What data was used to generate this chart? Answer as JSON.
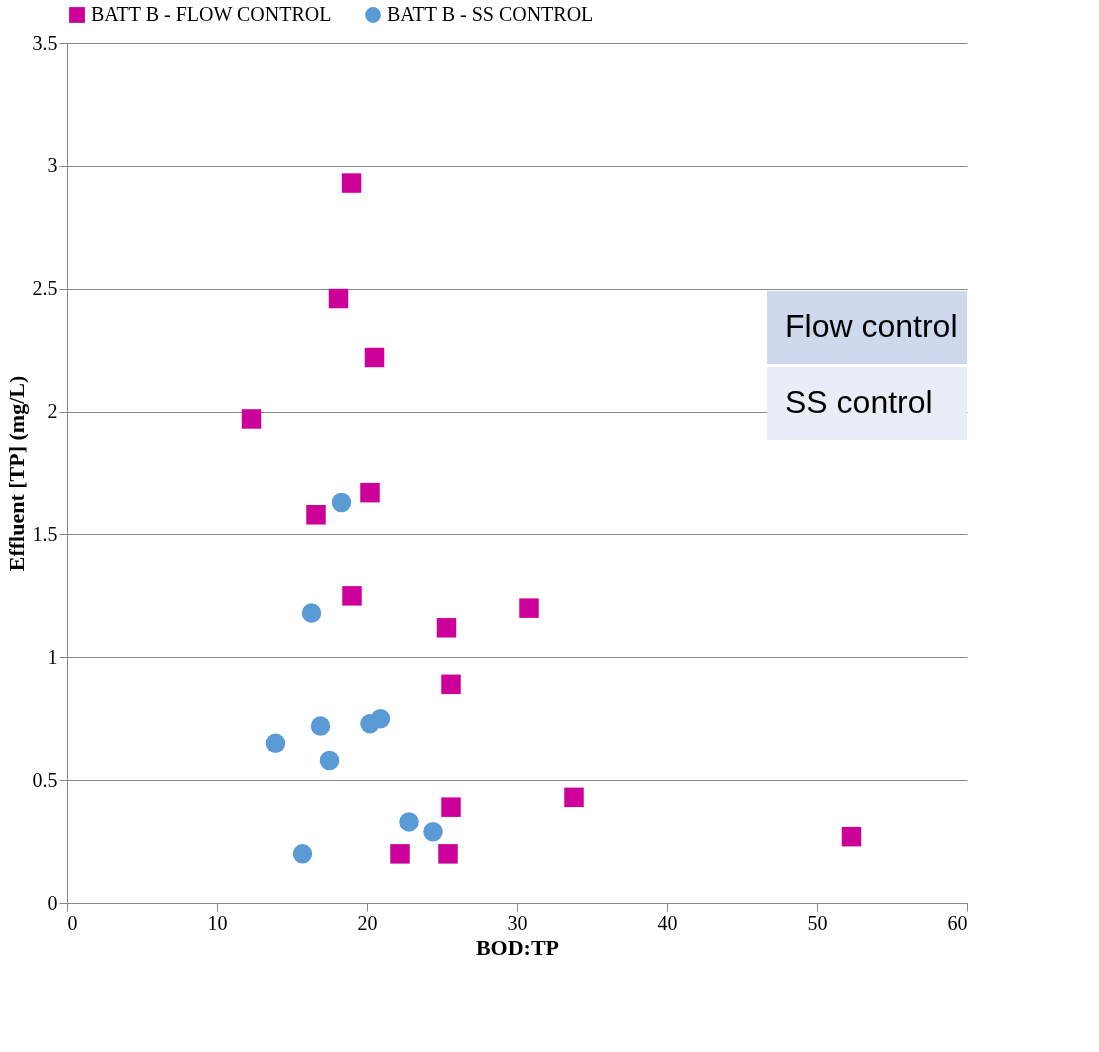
{
  "chart_data": {
    "type": "scatter",
    "xlabel": "BOD:TP",
    "ylabel": "Effluent [TP] (mg/L)",
    "xlim": [
      0,
      60
    ],
    "xticks": [
      0,
      10,
      20,
      30,
      40,
      50,
      60
    ],
    "ylim": [
      0,
      3.5
    ],
    "yticks": [
      0,
      0.5,
      1,
      1.5,
      2,
      2.5,
      3,
      3.5
    ],
    "grid": "y",
    "legend": "top",
    "series": [
      {
        "name": "BATT B - FLOW CONTROL",
        "color": "#cc0099",
        "marker": "square",
        "x": [
          18.97,
          18.1,
          20.5,
          12.3,
          20.2,
          16.6,
          19.0,
          30.8,
          25.3,
          25.6,
          33.8,
          25.6,
          52.3,
          22.2,
          25.4
        ],
        "values": [
          2.93,
          2.46,
          2.22,
          1.97,
          1.67,
          1.58,
          1.25,
          1.2,
          1.12,
          0.89,
          0.43,
          0.39,
          0.27,
          0.2,
          0.2
        ]
      },
      {
        "name": "BATT B - SS CONTROL",
        "color": "#5b9bd5",
        "marker": "circle",
        "x": [
          18.3,
          16.3,
          16.9,
          20.9,
          20.2,
          13.9,
          17.5,
          22.8,
          24.4,
          15.7
        ],
        "values": [
          1.63,
          1.18,
          0.72,
          0.75,
          0.73,
          0.65,
          0.58,
          0.33,
          0.29,
          0.2
        ]
      }
    ],
    "annotations": [
      "Flow control",
      "SS control"
    ]
  }
}
